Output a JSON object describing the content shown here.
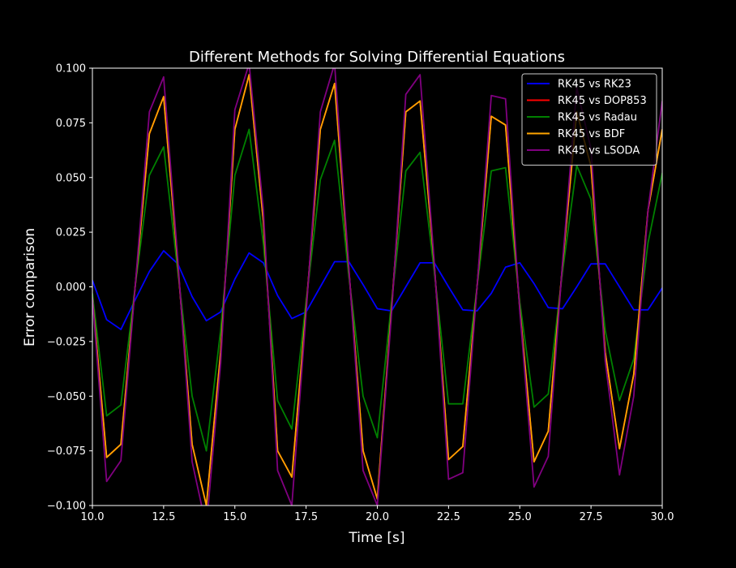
{
  "chart_data": {
    "type": "line",
    "title": "Different Methods for Solving Differential Equations",
    "xlabel": "Time [s]",
    "ylabel": "Error comparison",
    "xlim": [
      10.0,
      30.0
    ],
    "ylim": [
      -0.1,
      0.1
    ],
    "x_ticks": [
      10.0,
      12.5,
      15.0,
      17.5,
      20.0,
      22.5,
      25.0,
      27.5,
      30.0
    ],
    "x_tick_labels": [
      "10.0",
      "12.5",
      "15.0",
      "17.5",
      "20.0",
      "22.5",
      "25.0",
      "27.5",
      "30.0"
    ],
    "y_ticks": [
      -0.1,
      -0.075,
      -0.05,
      -0.025,
      0.0,
      0.025,
      0.05,
      0.075,
      0.1
    ],
    "y_tick_labels": [
      "−0.100",
      "−0.075",
      "−0.050",
      "−0.025",
      "0.000",
      "0.025",
      "0.050",
      "0.075",
      "0.100"
    ],
    "grid": false,
    "legend_position": "top-right",
    "background": "#000000",
    "x": [
      10.0,
      10.5,
      11.0,
      11.5,
      12.0,
      12.5,
      13.0,
      13.5,
      14.0,
      14.5,
      15.0,
      15.5,
      16.0,
      16.5,
      17.0,
      17.5,
      18.0,
      18.5,
      19.0,
      19.5,
      20.0,
      20.5,
      21.0,
      21.5,
      22.0,
      22.5,
      23.0,
      23.5,
      24.0,
      24.5,
      25.0,
      25.5,
      26.0,
      26.5,
      27.0,
      27.5,
      28.0,
      28.5,
      29.0,
      29.5,
      30.0
    ],
    "series": [
      {
        "name": "RK45 vs RK23",
        "color": "#0000ff",
        "values": [
          0.003,
          -0.015,
          -0.0195,
          -0.006,
          0.007,
          0.0165,
          0.0105,
          -0.0045,
          -0.0155,
          -0.0115,
          0.0035,
          0.0155,
          0.011,
          -0.004,
          -0.0145,
          -0.0115,
          0.0,
          0.0115,
          0.0115,
          0.001,
          -0.01,
          -0.011,
          0.0,
          0.011,
          0.011,
          0.0,
          -0.0105,
          -0.011,
          -0.003,
          0.009,
          0.011,
          0.0015,
          -0.0095,
          -0.01,
          0.0,
          0.0105,
          0.0105,
          0.0,
          -0.0105,
          -0.0105,
          -0.0005
        ]
      },
      {
        "name": "RK45 vs DOP853",
        "color": "#ff0000",
        "values": [
          -0.005,
          -0.078,
          -0.072,
          0.0,
          0.07,
          0.087,
          0.01,
          -0.072,
          -0.1,
          -0.03,
          0.072,
          0.097,
          0.03,
          -0.075,
          -0.087,
          -0.01,
          0.072,
          0.093,
          0.008,
          -0.075,
          -0.097,
          -0.01,
          0.08,
          0.085,
          0.01,
          -0.079,
          -0.073,
          0.0,
          0.078,
          0.074,
          -0.01,
          -0.08,
          -0.066,
          0.01,
          0.08,
          0.055,
          -0.03,
          -0.074,
          -0.04,
          0.035,
          0.072
        ]
      },
      {
        "name": "RK45 vs Radau",
        "color": "#008000",
        "values": [
          -0.003,
          -0.059,
          -0.054,
          0.0,
          0.051,
          0.064,
          0.007,
          -0.05,
          -0.075,
          -0.02,
          0.051,
          0.072,
          0.02,
          -0.052,
          -0.065,
          -0.007,
          0.049,
          0.067,
          0.005,
          -0.05,
          -0.069,
          -0.007,
          0.053,
          0.0615,
          0.007,
          -0.0535,
          -0.0535,
          0.0,
          0.053,
          0.0545,
          -0.007,
          -0.055,
          -0.049,
          0.007,
          0.0555,
          0.04,
          -0.02,
          -0.052,
          -0.033,
          0.02,
          0.052
        ]
      },
      {
        "name": "RK45 vs BDF",
        "color": "#ffa500",
        "values": [
          -0.005,
          -0.078,
          -0.072,
          0.0,
          0.07,
          0.087,
          0.01,
          -0.072,
          -0.1,
          -0.03,
          0.072,
          0.097,
          0.03,
          -0.075,
          -0.087,
          -0.01,
          0.072,
          0.093,
          0.008,
          -0.075,
          -0.097,
          -0.01,
          0.08,
          0.085,
          0.01,
          -0.079,
          -0.073,
          0.0,
          0.078,
          0.074,
          -0.01,
          -0.08,
          -0.066,
          0.01,
          0.08,
          0.055,
          -0.03,
          -0.074,
          -0.04,
          0.035,
          0.072
        ]
      },
      {
        "name": "RK45 vs LSODA",
        "color": "#800080",
        "values": [
          -0.005,
          -0.089,
          -0.0795,
          0.0,
          0.08,
          0.096,
          0.012,
          -0.08,
          -0.11,
          -0.035,
          0.081,
          0.102,
          0.035,
          -0.084,
          -0.1,
          -0.012,
          0.08,
          0.102,
          0.009,
          -0.084,
          -0.1,
          -0.012,
          0.088,
          0.097,
          0.011,
          -0.088,
          -0.085,
          0.0,
          0.0875,
          0.086,
          -0.011,
          -0.0915,
          -0.0775,
          0.011,
          0.091,
          0.063,
          -0.034,
          -0.086,
          -0.05,
          0.035,
          0.085
        ]
      }
    ]
  }
}
